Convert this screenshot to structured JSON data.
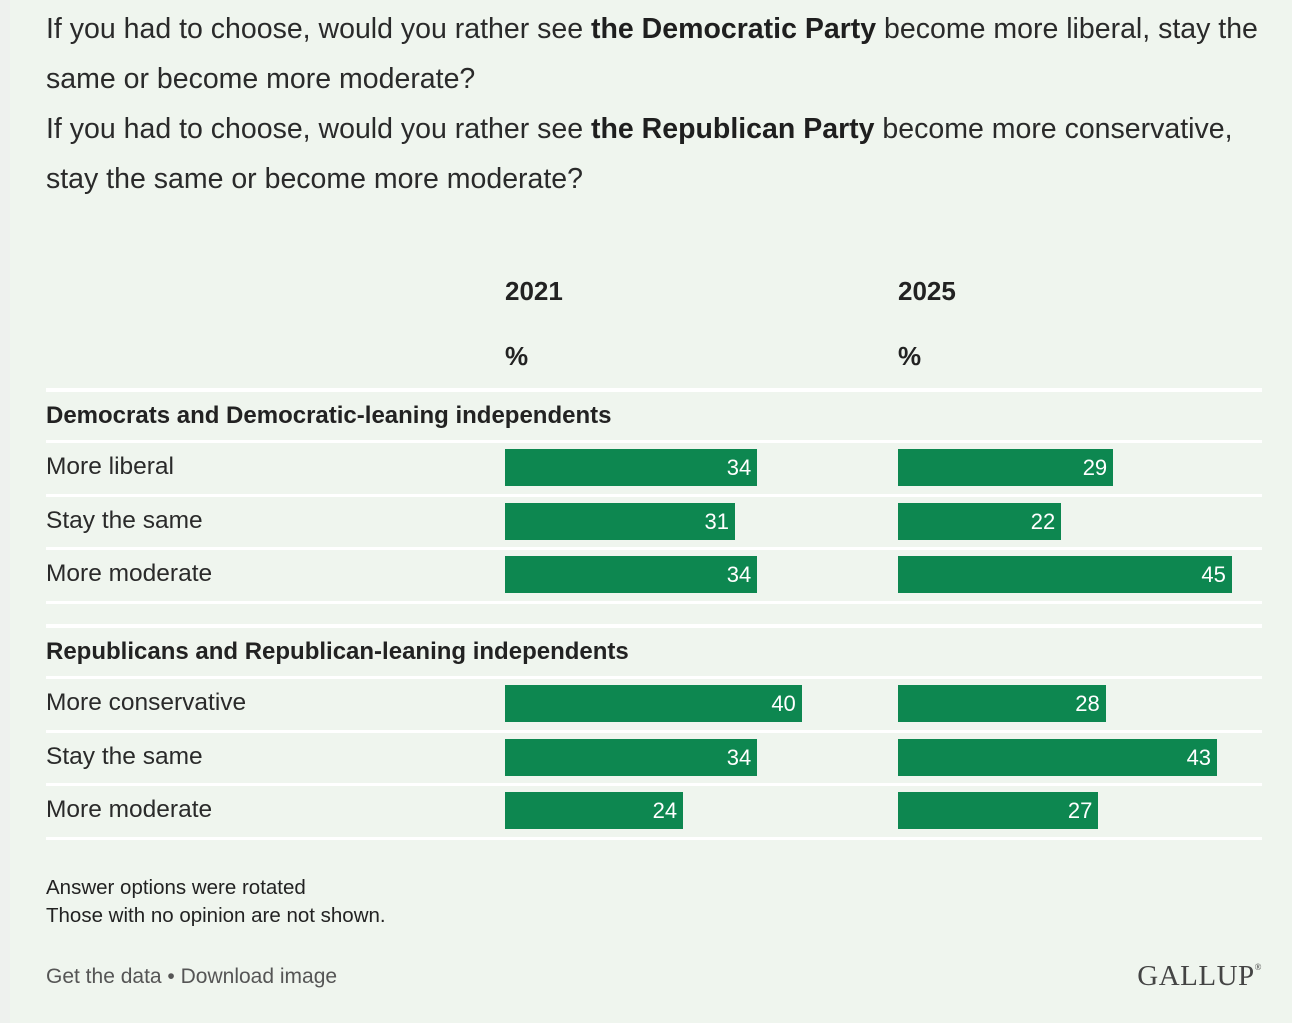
{
  "question": {
    "q1_prefix": "If you had to choose, would you rather see ",
    "q1_bold": "the Democratic Party",
    "q1_suffix": " become more liberal, stay the same or become more moderate?",
    "q2_prefix": "If you had to choose, would you rather see ",
    "q2_bold": "the Republican Party",
    "q2_suffix": " become more conservative, stay the same or become more moderate?"
  },
  "columns": [
    {
      "year": "2021",
      "unit": "%"
    },
    {
      "year": "2025",
      "unit": "%"
    }
  ],
  "chart_data": {
    "type": "bar",
    "groups": [
      {
        "title": "Democrats and Democratic-leaning independents",
        "rows": [
          {
            "label": "More liberal",
            "values": [
              34,
              29
            ]
          },
          {
            "label": "Stay the same",
            "values": [
              31,
              22
            ]
          },
          {
            "label": "More moderate",
            "values": [
              34,
              45
            ]
          }
        ]
      },
      {
        "title": "Republicans and Republican-leaning independents",
        "rows": [
          {
            "label": "More conservative",
            "values": [
              40,
              28
            ]
          },
          {
            "label": "Stay the same",
            "values": [
              34,
              43
            ]
          },
          {
            "label": "More moderate",
            "values": [
              24,
              27
            ]
          }
        ]
      }
    ],
    "bar_color": "#0d8750"
  },
  "notes": [
    "Answer options were rotated",
    "Those with no opinion are not shown."
  ],
  "footer": {
    "get_data": "Get the data",
    "separator": " • ",
    "download": "Download image",
    "brand": "GALLUP",
    "brand_mark": "®"
  }
}
